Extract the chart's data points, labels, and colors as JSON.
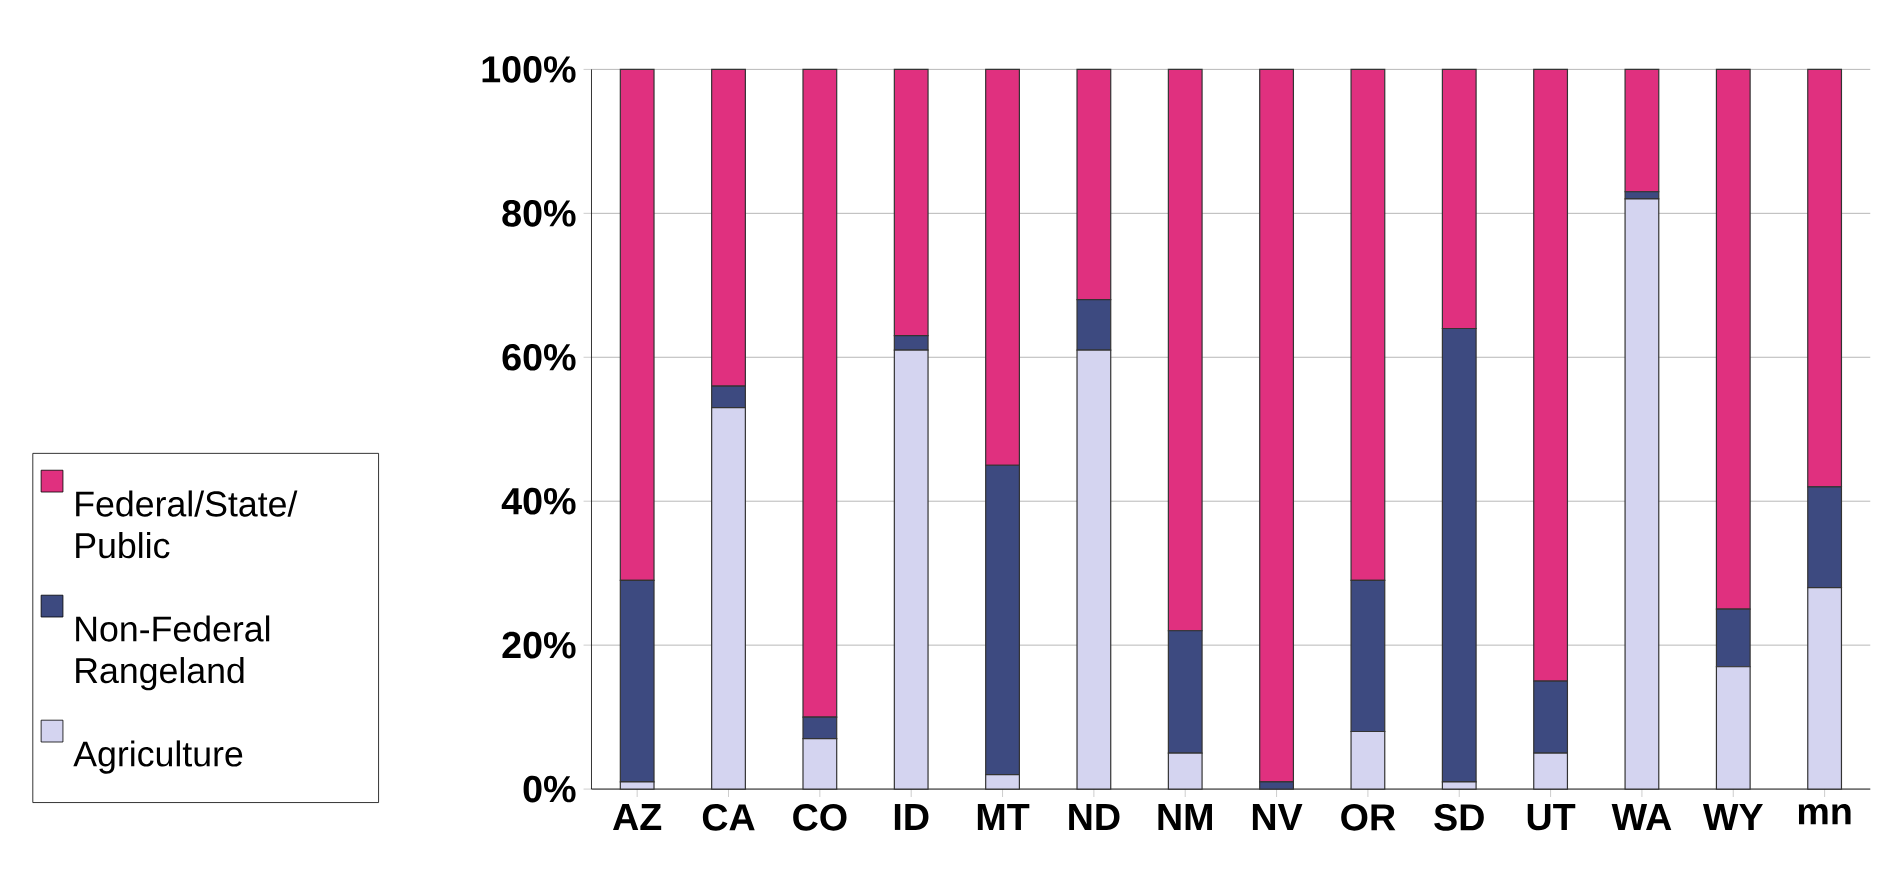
{
  "chart_data": {
    "type": "bar",
    "stacked": true,
    "categories": [
      "AZ",
      "CA",
      "CO",
      "ID",
      "MT",
      "ND",
      "NM",
      "NV",
      "OR",
      "SD",
      "UT",
      "WA",
      "WY",
      "mn"
    ],
    "series": [
      {
        "name": "Agriculture",
        "color": "#d4d4f0",
        "values": [
          1,
          53,
          7,
          61,
          2,
          61,
          5,
          0,
          8,
          1,
          5,
          82,
          17,
          28
        ]
      },
      {
        "name": "Non-Federal Rangeland",
        "color": "#3d4a80",
        "values": [
          28,
          3,
          3,
          2,
          43,
          7,
          17,
          1,
          21,
          63,
          10,
          1,
          8,
          14
        ]
      },
      {
        "name": "Federal/State/Public",
        "color": "#e0307f",
        "values": [
          71,
          44,
          90,
          37,
          55,
          32,
          78,
          99,
          71,
          36,
          85,
          17,
          75,
          58
        ]
      }
    ],
    "ylim": [
      0,
      100
    ],
    "yticks": [
      {
        "value": 0,
        "label": "0%"
      },
      {
        "value": 20,
        "label": "20%"
      },
      {
        "value": 40,
        "label": "40%"
      },
      {
        "value": 60,
        "label": "60%"
      },
      {
        "value": 80,
        "label": "80%"
      },
      {
        "value": 100,
        "label": "100%"
      }
    ],
    "grid": "y",
    "legend": "left"
  }
}
